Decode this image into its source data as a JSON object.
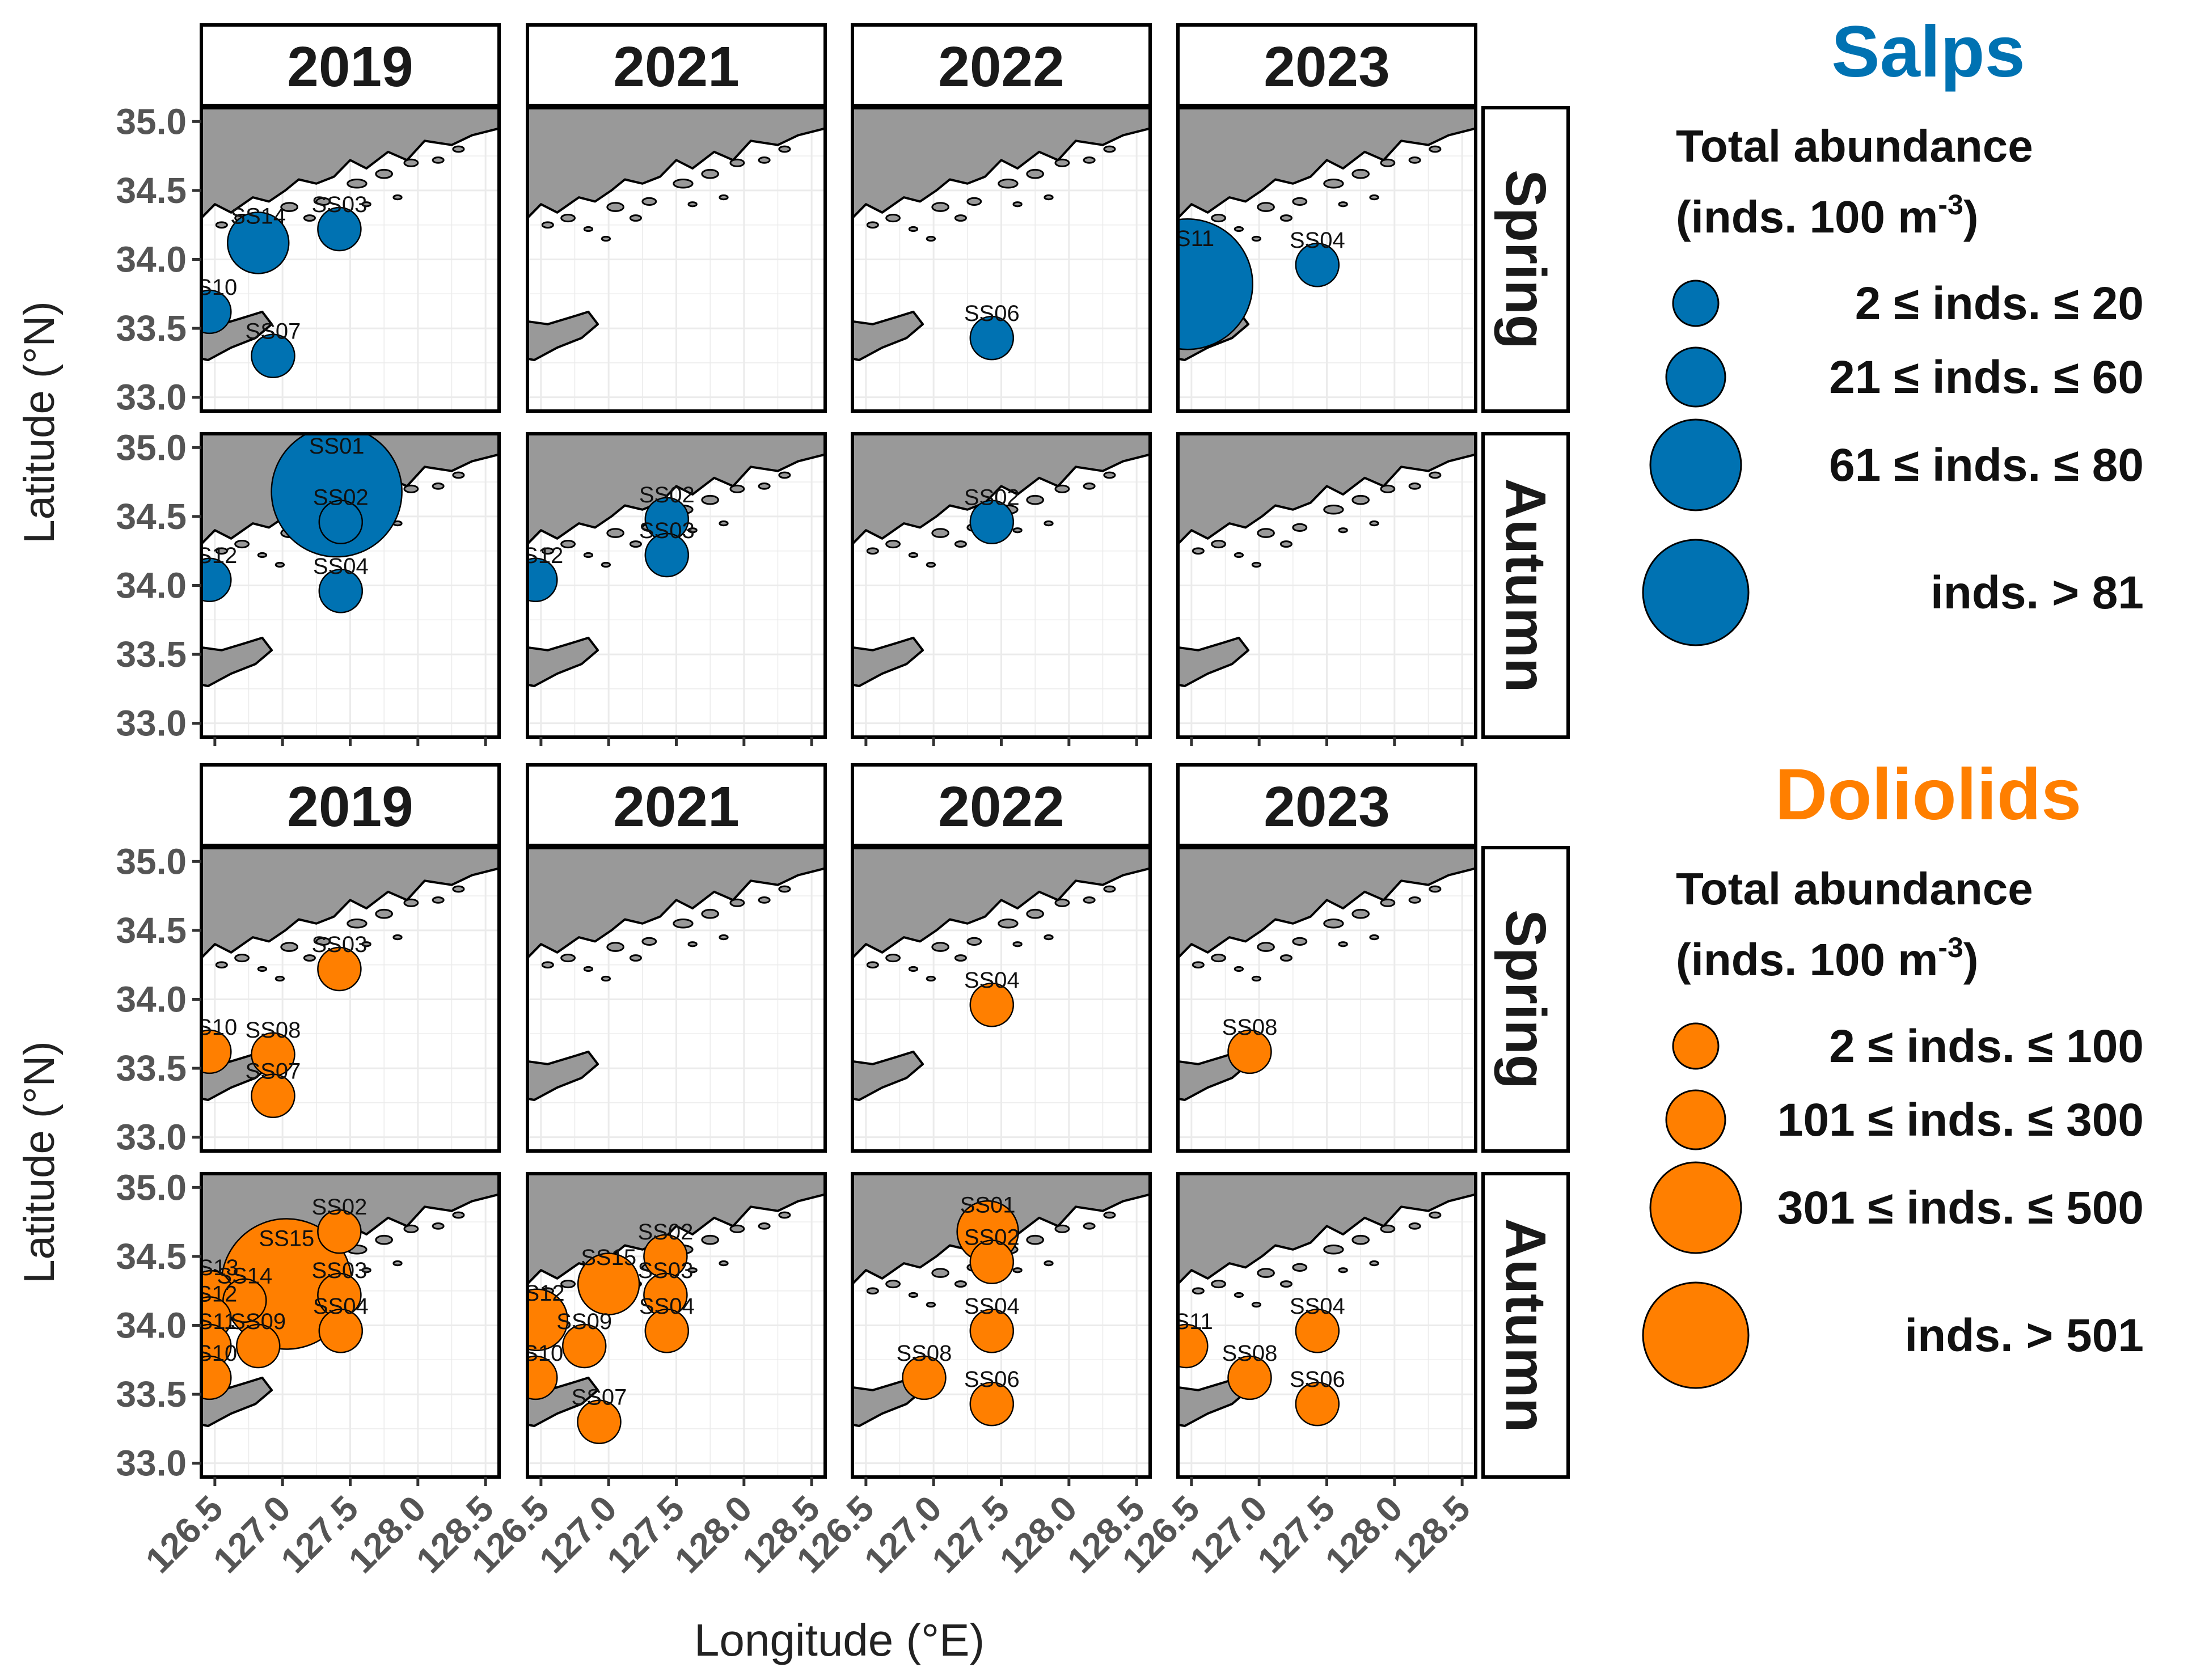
{
  "chart_data": {
    "type": "scatter",
    "description_kind": "faceted bubble map",
    "x_label": "Longitude (°E)",
    "y_label": "Latitude (°N)",
    "xlim": [
      126.4,
      128.6
    ],
    "ylim": [
      32.9,
      35.1
    ],
    "x_ticks": [
      126.5,
      127.0,
      127.5,
      128.0,
      128.5
    ],
    "x_tick_labels": [
      "126.5",
      "127.0",
      "127.5",
      "128.0",
      "128.5"
    ],
    "y_ticks": [
      33.0,
      33.5,
      34.0,
      34.5,
      35.0
    ],
    "y_tick_labels": [
      "33.0",
      "33.5",
      "34.0",
      "34.5",
      "35.0"
    ],
    "years": [
      "2019",
      "2021",
      "2022",
      "2023"
    ],
    "seasons": [
      "Spring",
      "Autumn"
    ],
    "groups": [
      {
        "id": "salps",
        "title": "Salps",
        "color": "#0072B2",
        "legend_title_line1": "Total abundance",
        "legend_title_line2": "(inds. 100 m",
        "legend_title_sup": "-3",
        "legend_title_end": ")",
        "legend": [
          {
            "label": "2 ≤ inds. ≤ 20",
            "level": 1
          },
          {
            "label": "21 ≤ inds. ≤ 60",
            "level": 2
          },
          {
            "label": "61 ≤ inds. ≤ 80",
            "level": 3
          },
          {
            "label": "inds. > 81",
            "level": 4
          }
        ],
        "panels": [
          {
            "year": "2019",
            "season": "Spring",
            "points": [
              {
                "station": "SS14",
                "lon": 126.82,
                "lat": 34.12,
                "level": 2
              },
              {
                "station": "SS03",
                "lon": 127.42,
                "lat": 34.22,
                "level": 1
              },
              {
                "station": "SS10",
                "lon": 126.46,
                "lat": 33.62,
                "level": 1
              },
              {
                "station": "SS07",
                "lon": 126.93,
                "lat": 33.3,
                "level": 1
              }
            ]
          },
          {
            "year": "2021",
            "season": "Spring",
            "points": []
          },
          {
            "year": "2022",
            "season": "Spring",
            "points": [
              {
                "station": "SS06",
                "lon": 127.43,
                "lat": 33.43,
                "level": 1
              }
            ]
          },
          {
            "year": "2023",
            "season": "Spring",
            "points": [
              {
                "station": "SS11",
                "lon": 126.47,
                "lat": 33.82,
                "level": 4
              },
              {
                "station": "SS04",
                "lon": 127.43,
                "lat": 33.96,
                "level": 1
              }
            ]
          },
          {
            "year": "2019",
            "season": "Autumn",
            "points": [
              {
                "station": "SS01",
                "lon": 127.4,
                "lat": 34.68,
                "level": 4
              },
              {
                "station": "SS02",
                "lon": 127.43,
                "lat": 34.46,
                "level": 1
              },
              {
                "station": "SS12",
                "lon": 126.46,
                "lat": 34.04,
                "level": 1
              },
              {
                "station": "SS04",
                "lon": 127.43,
                "lat": 33.96,
                "level": 1
              }
            ]
          },
          {
            "year": "2021",
            "season": "Autumn",
            "points": [
              {
                "station": "SS02",
                "lon": 127.43,
                "lat": 34.48,
                "level": 1
              },
              {
                "station": "SS03",
                "lon": 127.43,
                "lat": 34.22,
                "level": 1
              },
              {
                "station": "SS12",
                "lon": 126.46,
                "lat": 34.04,
                "level": 1
              }
            ]
          },
          {
            "year": "2022",
            "season": "Autumn",
            "points": [
              {
                "station": "SS02",
                "lon": 127.43,
                "lat": 34.46,
                "level": 1
              }
            ]
          },
          {
            "year": "2023",
            "season": "Autumn",
            "points": []
          }
        ]
      },
      {
        "id": "doliolids",
        "title": "Doliolids",
        "color": "#FF7F00",
        "legend_title_line1": "Total abundance",
        "legend_title_line2": "(inds. 100 m",
        "legend_title_sup": "-3",
        "legend_title_end": ")",
        "legend": [
          {
            "label": "2 ≤ inds. ≤ 100",
            "level": 1
          },
          {
            "label": "101 ≤ inds. ≤ 300",
            "level": 2
          },
          {
            "label": "301 ≤ inds. ≤ 500",
            "level": 3
          },
          {
            "label": "inds. > 501",
            "level": 4
          }
        ],
        "panels": [
          {
            "year": "2019",
            "season": "Spring",
            "points": [
              {
                "station": "SS03",
                "lon": 127.42,
                "lat": 34.22,
                "level": 1
              },
              {
                "station": "SS10",
                "lon": 126.46,
                "lat": 33.62,
                "level": 1
              },
              {
                "station": "SS08",
                "lon": 126.93,
                "lat": 33.6,
                "level": 1
              },
              {
                "station": "SS07",
                "lon": 126.93,
                "lat": 33.3,
                "level": 1
              }
            ]
          },
          {
            "year": "2021",
            "season": "Spring",
            "points": []
          },
          {
            "year": "2022",
            "season": "Spring",
            "points": [
              {
                "station": "SS04",
                "lon": 127.43,
                "lat": 33.96,
                "level": 1
              }
            ]
          },
          {
            "year": "2023",
            "season": "Spring",
            "points": [
              {
                "station": "SS08",
                "lon": 126.93,
                "lat": 33.62,
                "level": 1
              }
            ]
          },
          {
            "year": "2019",
            "season": "Autumn",
            "points": [
              {
                "station": "SS15",
                "lon": 127.03,
                "lat": 34.3,
                "level": 4
              },
              {
                "station": "SS02",
                "lon": 127.42,
                "lat": 34.68,
                "level": 1
              },
              {
                "station": "SS03",
                "lon": 127.42,
                "lat": 34.22,
                "level": 1
              },
              {
                "station": "SS04",
                "lon": 127.43,
                "lat": 33.96,
                "level": 1
              },
              {
                "station": "SS13",
                "lon": 126.47,
                "lat": 34.24,
                "level": 1
              },
              {
                "station": "SS14",
                "lon": 126.72,
                "lat": 34.18,
                "level": 1
              },
              {
                "station": "SS12",
                "lon": 126.46,
                "lat": 34.05,
                "level": 1
              },
              {
                "station": "SS11",
                "lon": 126.46,
                "lat": 33.85,
                "level": 1
              },
              {
                "station": "SS09",
                "lon": 126.82,
                "lat": 33.85,
                "level": 1
              },
              {
                "station": "SS10",
                "lon": 126.46,
                "lat": 33.62,
                "level": 1
              }
            ]
          },
          {
            "year": "2021",
            "season": "Autumn",
            "points": [
              {
                "station": "SS15",
                "lon": 127.0,
                "lat": 34.3,
                "level": 2
              },
              {
                "station": "SS02",
                "lon": 127.42,
                "lat": 34.5,
                "level": 1
              },
              {
                "station": "SS03",
                "lon": 127.42,
                "lat": 34.22,
                "level": 1
              },
              {
                "station": "SS04",
                "lon": 127.43,
                "lat": 33.96,
                "level": 1
              },
              {
                "station": "SS12",
                "lon": 126.47,
                "lat": 34.04,
                "level": 2
              },
              {
                "station": "SS09",
                "lon": 126.82,
                "lat": 33.85,
                "level": 1
              },
              {
                "station": "SS10",
                "lon": 126.46,
                "lat": 33.62,
                "level": 1
              },
              {
                "station": "SS07",
                "lon": 126.93,
                "lat": 33.3,
                "level": 1
              }
            ]
          },
          {
            "year": "2022",
            "season": "Autumn",
            "points": [
              {
                "station": "SS01",
                "lon": 127.4,
                "lat": 34.68,
                "level": 2
              },
              {
                "station": "SS02",
                "lon": 127.43,
                "lat": 34.46,
                "level": 1
              },
              {
                "station": "SS04",
                "lon": 127.43,
                "lat": 33.96,
                "level": 1
              },
              {
                "station": "SS08",
                "lon": 126.93,
                "lat": 33.62,
                "level": 1
              },
              {
                "station": "SS06",
                "lon": 127.43,
                "lat": 33.43,
                "level": 1
              }
            ]
          },
          {
            "year": "2023",
            "season": "Autumn",
            "points": [
              {
                "station": "SS11",
                "lon": 126.46,
                "lat": 33.85,
                "level": 1
              },
              {
                "station": "SS04",
                "lon": 127.43,
                "lat": 33.96,
                "level": 1
              },
              {
                "station": "SS08",
                "lon": 126.93,
                "lat": 33.62,
                "level": 1
              },
              {
                "station": "SS06",
                "lon": 127.43,
                "lat": 33.43,
                "level": 1
              }
            ]
          }
        ]
      }
    ]
  }
}
